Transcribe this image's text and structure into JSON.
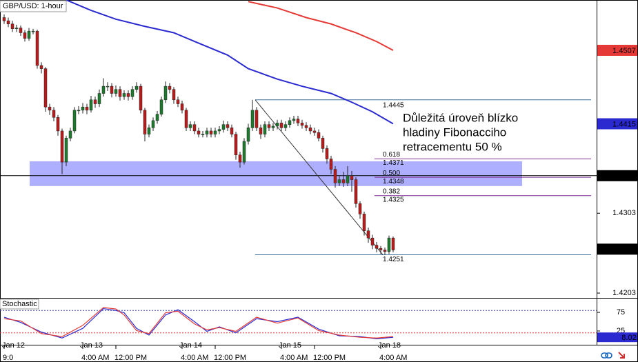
{
  "chart_data": {
    "type": "candlestick",
    "title": "GBP/USD: 1-hour",
    "ylim": [
      1.4197,
      1.457
    ],
    "yticks": [
      1.4303,
      1.4203
    ],
    "date_labels": [
      "Jan 12",
      null,
      null,
      null,
      null,
      null,
      null,
      null,
      null,
      null,
      null,
      null,
      null,
      null,
      null,
      null,
      null,
      null,
      null,
      "Jan 13",
      null,
      null,
      null,
      null,
      null,
      null,
      null,
      null,
      null,
      null,
      null,
      null,
      null,
      null,
      null,
      null,
      null,
      null,
      null,
      null,
      null,
      null,
      null,
      "Jan 14",
      null,
      null,
      null,
      null,
      null,
      null,
      null,
      null,
      null,
      null,
      null,
      null,
      null,
      null,
      null,
      null,
      null,
      null,
      null,
      null,
      null,
      null,
      null,
      "Jan 15",
      null,
      null,
      null,
      null,
      null,
      null,
      null,
      null,
      null,
      null,
      null,
      null,
      null,
      null,
      null,
      null,
      null,
      null,
      null,
      null,
      null,
      null,
      null,
      "Jan 18",
      null,
      null,
      null
    ],
    "categories": [
      "9:0",
      null,
      null,
      null,
      null,
      null,
      null,
      null,
      null,
      null,
      null,
      null,
      null,
      null,
      null,
      null,
      null,
      null,
      null,
      "4:00 AM",
      null,
      null,
      null,
      null,
      null,
      null,
      null,
      "12:00 PM",
      null,
      null,
      null,
      null,
      null,
      null,
      null,
      null,
      null,
      null,
      null,
      null,
      null,
      null,
      null,
      "4:00 AM",
      null,
      null,
      null,
      null,
      null,
      null,
      null,
      "12:00 PM",
      null,
      null,
      null,
      null,
      null,
      null,
      null,
      null,
      null,
      null,
      null,
      null,
      null,
      null,
      null,
      "4:00 AM",
      null,
      null,
      null,
      null,
      null,
      null,
      null,
      "12:00 PM",
      null,
      null,
      null,
      null,
      null,
      null,
      null,
      null,
      null,
      null,
      null,
      null,
      null,
      null,
      null,
      "4:00 AM",
      null,
      null,
      null
    ],
    "ohlc": [
      [
        1.4548,
        1.4552,
        1.454,
        1.4544
      ],
      [
        1.4544,
        1.4548,
        1.4536,
        1.454
      ],
      [
        1.454,
        1.4544,
        1.453,
        1.4534
      ],
      [
        1.4534,
        1.4539,
        1.453,
        1.4535
      ],
      [
        1.4535,
        1.4538,
        1.4525,
        1.4529
      ],
      [
        1.4529,
        1.4532,
        1.4518,
        1.4522
      ],
      [
        1.4522,
        1.4535,
        1.4519,
        1.4531
      ],
      [
        1.4531,
        1.4534,
        1.4527,
        1.4531
      ],
      [
        1.4531,
        1.4533,
        1.4484,
        1.4488
      ],
      [
        1.4488,
        1.4492,
        1.4478,
        1.4484
      ],
      [
        1.4484,
        1.4486,
        1.443,
        1.4436
      ],
      [
        1.4436,
        1.444,
        1.4426,
        1.4432
      ],
      [
        1.4432,
        1.4436,
        1.4418,
        1.4423
      ],
      [
        1.4423,
        1.4426,
        1.44,
        1.4406
      ],
      [
        1.4406,
        1.4409,
        1.4352,
        1.4367
      ],
      [
        1.4367,
        1.44,
        1.4362,
        1.4397
      ],
      [
        1.4397,
        1.441,
        1.4393,
        1.4406
      ],
      [
        1.4406,
        1.4436,
        1.4403,
        1.4432
      ],
      [
        1.4432,
        1.4437,
        1.4427,
        1.4432
      ],
      [
        1.4432,
        1.4441,
        1.4428,
        1.4436
      ],
      [
        1.4436,
        1.444,
        1.4427,
        1.4432
      ],
      [
        1.4432,
        1.445,
        1.4429,
        1.4445
      ],
      [
        1.4445,
        1.4449,
        1.4435,
        1.444
      ],
      [
        1.444,
        1.4458,
        1.4436,
        1.4453
      ],
      [
        1.4453,
        1.4472,
        1.4449,
        1.4462
      ],
      [
        1.4462,
        1.4467,
        1.4456,
        1.4462
      ],
      [
        1.4462,
        1.4466,
        1.4448,
        1.4453
      ],
      [
        1.4453,
        1.4463,
        1.4449,
        1.4458
      ],
      [
        1.4458,
        1.4462,
        1.4444,
        1.4449
      ],
      [
        1.4449,
        1.4457,
        1.4445,
        1.4453
      ],
      [
        1.4453,
        1.4457,
        1.4444,
        1.4449
      ],
      [
        1.4449,
        1.4462,
        1.4445,
        1.4458
      ],
      [
        1.4458,
        1.4467,
        1.4454,
        1.4462
      ],
      [
        1.4462,
        1.4465,
        1.4428,
        1.4432
      ],
      [
        1.4432,
        1.4435,
        1.4393,
        1.4402
      ],
      [
        1.4402,
        1.4414,
        1.4398,
        1.441
      ],
      [
        1.441,
        1.4423,
        1.4406,
        1.4419
      ],
      [
        1.4419,
        1.4431,
        1.4415,
        1.4427
      ],
      [
        1.4427,
        1.4449,
        1.4424,
        1.4445
      ],
      [
        1.4445,
        1.4468,
        1.4441,
        1.4462
      ],
      [
        1.4462,
        1.4466,
        1.4453,
        1.4458
      ],
      [
        1.4458,
        1.4461,
        1.444,
        1.4445
      ],
      [
        1.4445,
        1.4449,
        1.4436,
        1.444
      ],
      [
        1.444,
        1.4444,
        1.4428,
        1.4432
      ],
      [
        1.4432,
        1.4435,
        1.4406,
        1.441
      ],
      [
        1.441,
        1.4418,
        1.4406,
        1.4414
      ],
      [
        1.4414,
        1.4418,
        1.4402,
        1.4406
      ],
      [
        1.4406,
        1.441,
        1.4398,
        1.4402
      ],
      [
        1.4402,
        1.4406,
        1.4398,
        1.4402
      ],
      [
        1.4402,
        1.441,
        1.4398,
        1.4406
      ],
      [
        1.4406,
        1.441,
        1.4398,
        1.4402
      ],
      [
        1.4402,
        1.441,
        1.4398,
        1.4406
      ],
      [
        1.4406,
        1.4412,
        1.4402,
        1.4408
      ],
      [
        1.4408,
        1.4419,
        1.4404,
        1.4414
      ],
      [
        1.4414,
        1.4418,
        1.4406,
        1.441
      ],
      [
        1.441,
        1.4414,
        1.4398,
        1.4402
      ],
      [
        1.4402,
        1.4405,
        1.437,
        1.4376
      ],
      [
        1.4376,
        1.438,
        1.436,
        1.4367
      ],
      [
        1.4367,
        1.4397,
        1.4364,
        1.4393
      ],
      [
        1.4393,
        1.4415,
        1.4389,
        1.441
      ],
      [
        1.441,
        1.4445,
        1.4406,
        1.4432
      ],
      [
        1.4432,
        1.4436,
        1.4406,
        1.441
      ],
      [
        1.441,
        1.4414,
        1.4396,
        1.4402
      ],
      [
        1.4402,
        1.4418,
        1.4398,
        1.4414
      ],
      [
        1.4414,
        1.4418,
        1.4406,
        1.441
      ],
      [
        1.441,
        1.4416,
        1.4406,
        1.4412
      ],
      [
        1.4412,
        1.442,
        1.4408,
        1.4416
      ],
      [
        1.4416,
        1.442,
        1.4406,
        1.441
      ],
      [
        1.441,
        1.4418,
        1.4406,
        1.4414
      ],
      [
        1.4414,
        1.4423,
        1.441,
        1.4419
      ],
      [
        1.4419,
        1.4425,
        1.4415,
        1.4421
      ],
      [
        1.4421,
        1.4425,
        1.4412,
        1.4416
      ],
      [
        1.4416,
        1.442,
        1.4409,
        1.4413
      ],
      [
        1.4413,
        1.4417,
        1.4406,
        1.441
      ],
      [
        1.441,
        1.4414,
        1.4402,
        1.4406
      ],
      [
        1.4406,
        1.441,
        1.44,
        1.4404
      ],
      [
        1.4404,
        1.4408,
        1.4393,
        1.4397
      ],
      [
        1.4397,
        1.44,
        1.4379,
        1.4384
      ],
      [
        1.4384,
        1.4388,
        1.4365,
        1.4371
      ],
      [
        1.4371,
        1.4375,
        1.4352,
        1.4358
      ],
      [
        1.4358,
        1.4362,
        1.4335,
        1.4341
      ],
      [
        1.4341,
        1.435,
        1.4337,
        1.4345
      ],
      [
        1.4345,
        1.4355,
        1.4336,
        1.4341
      ],
      [
        1.4341,
        1.4362,
        1.4337,
        1.435
      ],
      [
        1.435,
        1.4356,
        1.433,
        1.4345
      ],
      [
        1.4345,
        1.4348,
        1.431,
        1.4315
      ],
      [
        1.4315,
        1.4318,
        1.4296,
        1.4302
      ],
      [
        1.4302,
        1.4305,
        1.4275,
        1.4281
      ],
      [
        1.4281,
        1.4285,
        1.4266,
        1.4272
      ],
      [
        1.4272,
        1.4276,
        1.4258,
        1.4263
      ],
      [
        1.4263,
        1.4267,
        1.4254,
        1.4259
      ],
      [
        1.4259,
        1.4262,
        1.4252,
        1.4257
      ],
      [
        1.4257,
        1.426,
        1.4251,
        1.4255
      ],
      [
        1.4255,
        1.4275,
        1.4252,
        1.4272
      ],
      [
        1.4272,
        1.4274,
        1.4254,
        1.4257
      ]
    ],
    "up_color": "#1e7b2e",
    "down_color": "#b71c1c",
    "series": [
      {
        "color": "#2a2ad0",
        "x": [
          15,
          21,
          27,
          34,
          41,
          47,
          54,
          59,
          66,
          72,
          79,
          84,
          89,
          94
        ],
        "values": [
          1.457,
          1.4557,
          1.4546,
          1.4537,
          1.4529,
          1.4516,
          1.4501,
          1.4484,
          1.4471,
          1.4462,
          1.4453,
          1.4442,
          1.443,
          1.4415
        ]
      },
      {
        "color": "#e53935",
        "x": [
          59,
          66,
          73,
          79,
          85,
          90,
          94
        ],
        "values": [
          1.4568,
          1.456,
          1.4548,
          1.454,
          1.4529,
          1.4518,
          1.4507
        ]
      }
    ],
    "price_labels": [
      {
        "value": 1.4507,
        "color": "#e53935"
      },
      {
        "value": 1.4415,
        "color": "#2a2ad0"
      },
      {
        "value": {
          "value": 1.435,
          "label": "1.4350"
        },
        "color": "#000000"
      },
      {
        "value": 1.4258,
        "color": "#000000"
      }
    ],
    "hline": 1.435,
    "zone": [
      1.4337,
      1.4368
    ],
    "fibonacci": {
      "high": 1.4445,
      "low": 1.4251,
      "color": "#3c6e9a",
      "level_color": "#7b2c8e",
      "levels": [
        {
          "ratio": 0.618,
          "price": 1.4371
        },
        {
          "ratio": {
            "value": 0.5,
            "label": "0.500"
          },
          "price": 1.4348
        },
        {
          "ratio": 0.382,
          "price": 1.4325
        }
      ]
    },
    "annotation": [
      "Důležitá úroveň blízko",
      "hladiny Fibonacciho",
      "retracementu 50 %"
    ],
    "stochastic": {
      "title": "Stochastic",
      "ylim": [
        -12,
        112
      ],
      "yticks": [
        75,
        25
      ],
      "levels": [
        80,
        20
      ],
      "last": 8.02,
      "x": [
        0,
        4,
        9,
        14,
        19,
        24,
        27,
        29,
        32,
        35,
        39,
        42,
        46,
        49,
        52,
        56,
        61,
        66,
        71,
        76,
        81,
        86,
        90,
        94
      ],
      "series": [
        {
          "color": "#2a2ad0",
          "values": [
            62,
            48,
            22,
            6,
            32,
            85,
            80,
            74,
            32,
            14,
            68,
            82,
            50,
            24,
            36,
            20,
            58,
            50,
            62,
            30,
            12,
            10,
            4,
            8.02
          ]
        },
        {
          "color": "#e53935",
          "values": [
            58,
            52,
            18,
            10,
            40,
            88,
            84,
            68,
            26,
            18,
            74,
            78,
            44,
            28,
            34,
            24,
            62,
            46,
            60,
            26,
            14,
            8,
            6,
            10
          ]
        }
      ]
    }
  }
}
